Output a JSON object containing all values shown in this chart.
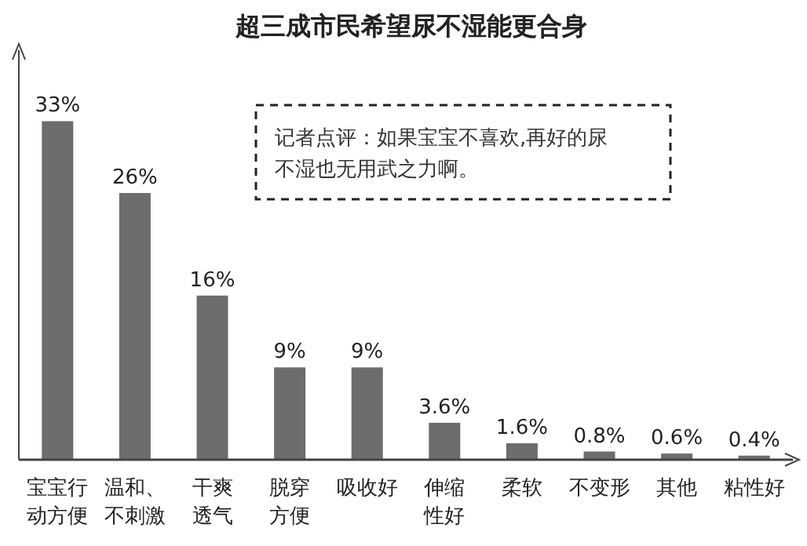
{
  "chart_data": {
    "type": "bar",
    "title": "超三成市民希望尿不湿能更合身",
    "categories": [
      "宝宝行动方便",
      "温和、不刺激",
      "干爽透气",
      "脱穿方便",
      "吸收好",
      "伸缩性好",
      "柔软",
      "不变形",
      "其他",
      "粘性好"
    ],
    "values": [
      33,
      26,
      16,
      9,
      9,
      3.6,
      1.6,
      0.8,
      0.6,
      0.4
    ],
    "value_labels": [
      "33%",
      "26%",
      "16%",
      "9%",
      "9%",
      "3.6%",
      "1.6%",
      "0.8%",
      "0.6%",
      "0.4%"
    ],
    "color": "#6d6d6d",
    "annotations": [
      "记者点评：如果宝宝不喜欢,再好的尿不湿也无用武之力啊。"
    ]
  }
}
